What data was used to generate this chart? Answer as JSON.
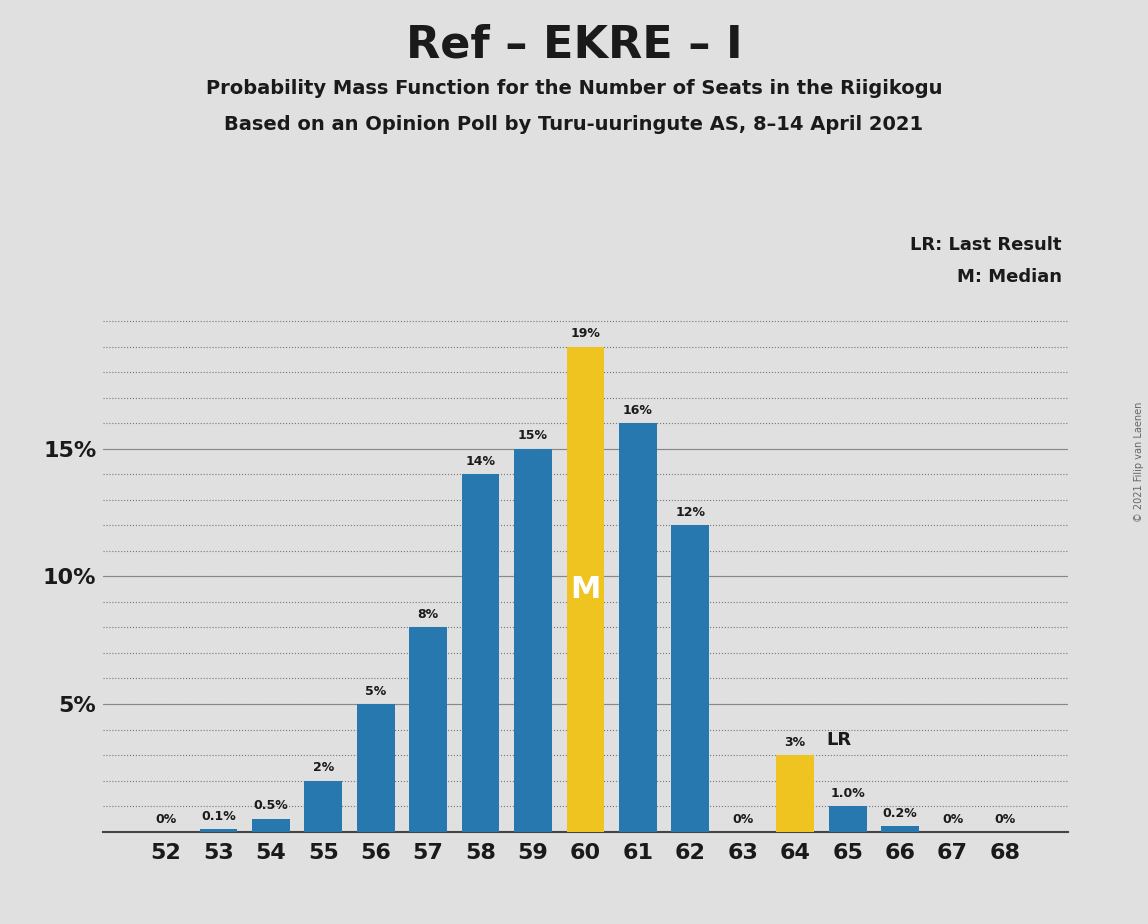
{
  "title": "Ref – EKRE – I",
  "subtitle1": "Probability Mass Function for the Number of Seats in the Riigikogu",
  "subtitle2": "Based on an Opinion Poll by Turu-uuringute AS, 8–14 April 2021",
  "copyright": "© 2021 Filip van Laenen",
  "legend_lr": "LR: Last Result",
  "legend_m": "M: Median",
  "median_label": "M",
  "lr_label": "LR",
  "seats": [
    52,
    53,
    54,
    55,
    56,
    57,
    58,
    59,
    60,
    61,
    62,
    63,
    64,
    65,
    66,
    67,
    68
  ],
  "values": [
    0.0,
    0.1,
    0.5,
    2.0,
    5.0,
    8.0,
    14.0,
    15.0,
    19.0,
    16.0,
    12.0,
    0.0,
    3.0,
    1.0,
    0.2,
    0.0,
    0.0
  ],
  "labels": [
    "0%",
    "0.1%",
    "0.5%",
    "2%",
    "5%",
    "8%",
    "14%",
    "15%",
    "19%",
    "16%",
    "12%",
    "0%",
    "3%",
    "1.0%",
    "0.2%",
    "0%",
    "0%"
  ],
  "median_seat": 60,
  "lr_seat": 64,
  "bar_color_blue": "#2878b0",
  "bar_color_yellow": "#f0c420",
  "background_color": "#e0e0e0",
  "plot_bg_color": "#e0e0e0",
  "ytick_positions": [
    0,
    5,
    10,
    15
  ],
  "ytick_labels": [
    "",
    "5%",
    "10%",
    "15%"
  ],
  "grid_lines": [
    1.0,
    2.0,
    3.0,
    4.0,
    5.0,
    6.0,
    7.0,
    8.0,
    9.0,
    10.0,
    11.0,
    12.0,
    13.0,
    14.0,
    15.0,
    16.0,
    17.0,
    18.0,
    19.0,
    20.0
  ],
  "ylim": [
    0,
    21
  ],
  "figsize": [
    11.48,
    9.24
  ],
  "dpi": 100
}
